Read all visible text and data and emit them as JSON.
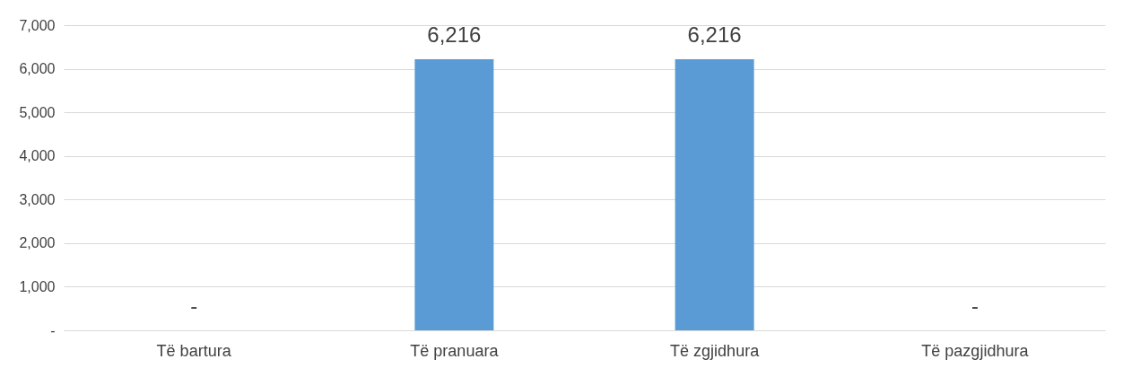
{
  "chart_data": {
    "type": "bar",
    "categories": [
      "Të bartura",
      "Të pranuara",
      "Të zgjidhura",
      "Të pazgjidhura"
    ],
    "values": [
      0,
      6216,
      6216,
      0
    ],
    "value_labels": [
      "-",
      "6,216",
      "6,216",
      "-"
    ],
    "color": "#5b9bd5",
    "ylim": [
      0,
      7000
    ],
    "yticks": [
      {
        "value": 0,
        "label": "-"
      },
      {
        "value": 1000,
        "label": "1,000"
      },
      {
        "value": 2000,
        "label": "2,000"
      },
      {
        "value": 3000,
        "label": "3,000"
      },
      {
        "value": 4000,
        "label": "4,000"
      },
      {
        "value": 5000,
        "label": "5,000"
      },
      {
        "value": 6000,
        "label": "6,000"
      },
      {
        "value": 7000,
        "label": "7,000"
      }
    ],
    "grid": "y"
  }
}
